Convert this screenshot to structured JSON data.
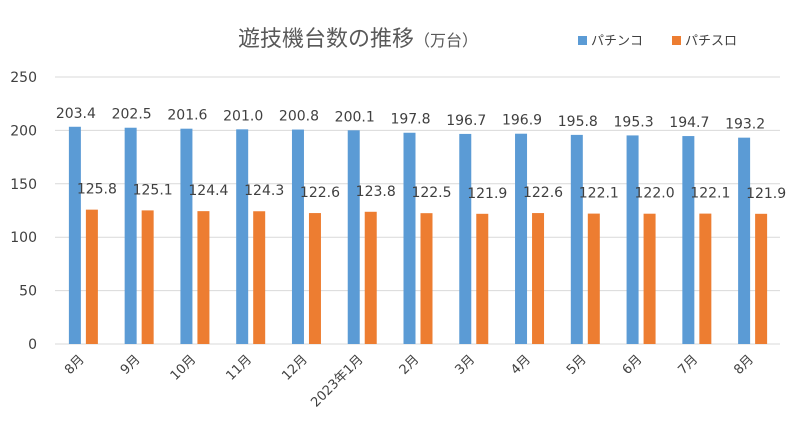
{
  "chart_data": {
    "type": "bar",
    "title": "遊技機台数の推移",
    "title_unit": "（万台）",
    "categories": [
      "8月",
      "9月",
      "10月",
      "11月",
      "12月",
      "2023年1月",
      "2月",
      "3月",
      "4月",
      "5月",
      "6月",
      "7月",
      "8月"
    ],
    "series": [
      {
        "name": "パチンコ",
        "color": "#5B9BD5",
        "values": [
          203.4,
          202.5,
          201.6,
          201.0,
          200.8,
          200.1,
          197.8,
          196.7,
          196.9,
          195.8,
          195.3,
          194.7,
          193.2
        ]
      },
      {
        "name": "パチスロ",
        "color": "#ED7D31",
        "values": [
          125.8,
          125.1,
          124.4,
          124.3,
          122.6,
          123.8,
          122.5,
          121.9,
          122.6,
          122.1,
          122.0,
          122.1,
          121.9
        ]
      }
    ],
    "ylim": [
      0,
      250
    ],
    "yticks": [
      0,
      50,
      100,
      150,
      200,
      250
    ],
    "grid": true,
    "legend": "top-right",
    "xlabel": "",
    "ylabel": ""
  }
}
